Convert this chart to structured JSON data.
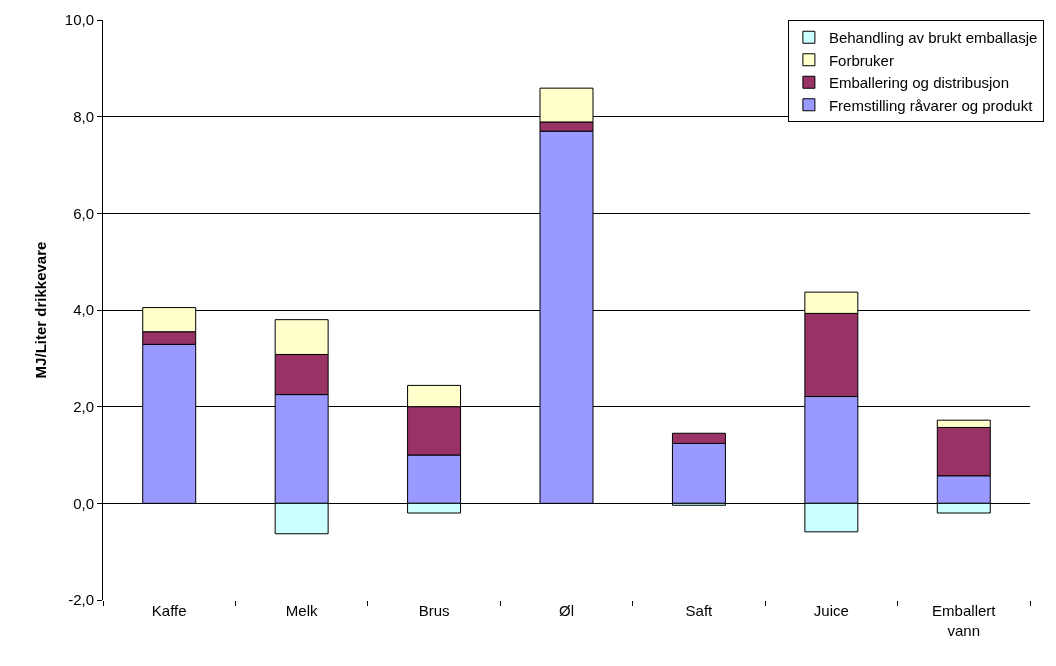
{
  "chart_data": {
    "type": "bar",
    "stacked": true,
    "ylabel": "MJ/Liter drikkevare",
    "categories": [
      "Kaffe",
      "Melk",
      "Brus",
      "Øl",
      "Saft",
      "Juice",
      "Emballert vann"
    ],
    "series": [
      {
        "name": "Fremstilling råvarer og produkt",
        "color": "#9999ff",
        "values": [
          3.29,
          2.25,
          1.0,
          7.7,
          1.24,
          2.21,
          0.57
        ]
      },
      {
        "name": "Emballering og distribusjon",
        "color": "#993366",
        "values": [
          0.26,
          0.83,
          1.0,
          0.19,
          0.21,
          1.72,
          1.0
        ]
      },
      {
        "name": "Forbruker",
        "color": "#ffffcc",
        "values": [
          0.5,
          0.72,
          0.44,
          0.7,
          null,
          0.44,
          0.15
        ]
      },
      {
        "name": "Behandling av brukt emballasje",
        "color": "#ccffff",
        "values": [
          null,
          -0.63,
          -0.2,
          null,
          -0.04,
          -0.59,
          -0.2
        ]
      }
    ],
    "ylim": [
      -2,
      10
    ],
    "yticks": [
      {
        "value": -2,
        "label": "-2,0"
      },
      {
        "value": 0,
        "label": "0,0"
      },
      {
        "value": 2,
        "label": "2,0"
      },
      {
        "value": 4,
        "label": "4,0"
      },
      {
        "value": 6,
        "label": "6,0"
      },
      {
        "value": 8,
        "label": "8,0"
      },
      {
        "value": 10,
        "label": "10,0"
      }
    ],
    "grid": "y",
    "legend": "top right"
  }
}
